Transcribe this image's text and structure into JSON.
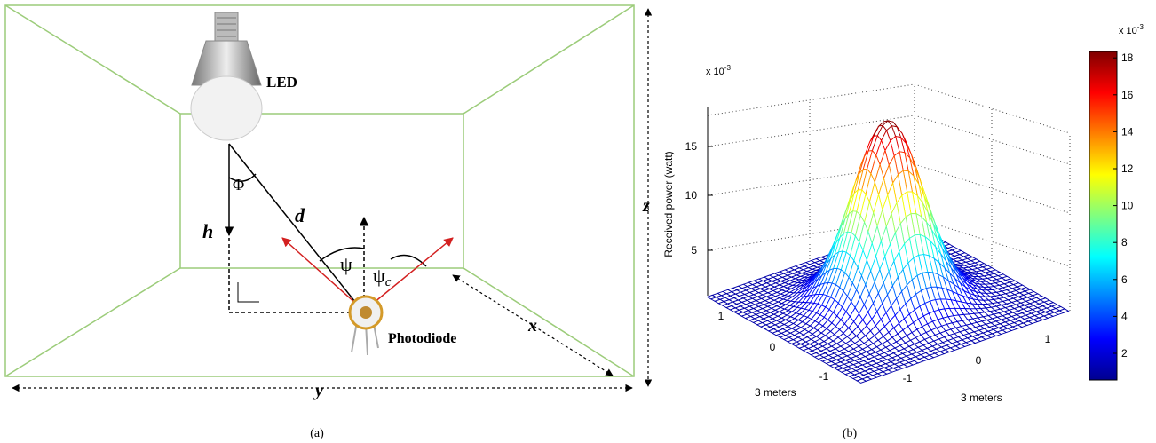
{
  "panel_a": {
    "labels": {
      "led": "LED",
      "phi": "Φ",
      "d": "d",
      "h": "h",
      "psi": "ψ",
      "psi_c": "ψ",
      "psi_c_sub": "c",
      "z": "z",
      "y": "y",
      "x": "x",
      "photodiode": "Photodiode"
    },
    "caption": "(a)"
  },
  "panel_b": {
    "z_axis_label": "Received power (watt)",
    "z_multiplier": "x 10",
    "z_multiplier_exp": "-3",
    "z_ticks": [
      "5",
      "10",
      "15"
    ],
    "left_axis_ticks": [
      "1",
      "0",
      "-1"
    ],
    "right_axis_ticks": [
      "-1",
      "0",
      "1"
    ],
    "left_axis_label": "3 meters",
    "right_axis_label": "3 meters",
    "colorbar_multiplier": "x 10",
    "colorbar_multiplier_exp": "-3",
    "colorbar_ticks": [
      "2",
      "4",
      "6",
      "8",
      "10",
      "12",
      "14",
      "16",
      "18"
    ],
    "caption": "(b)"
  }
}
